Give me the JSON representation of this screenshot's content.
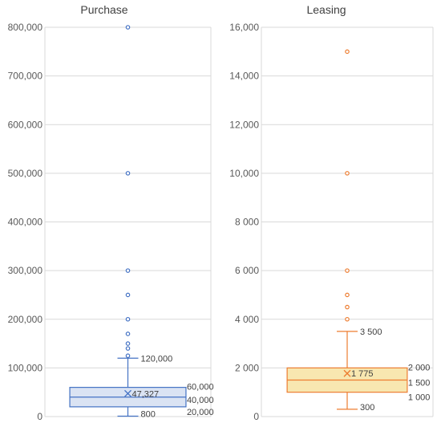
{
  "colors": {
    "purchase_stroke": "#4472C4",
    "purchase_fill": "#DAE3F3",
    "leasing_stroke": "#ED7D31",
    "leasing_fill": "#F8E7B0",
    "grid": "#D9D9D9",
    "axis_text": "#595959"
  },
  "chart_data": [
    {
      "type": "box",
      "title": "Purchase",
      "ylim": [
        0,
        800000
      ],
      "y_ticks": [
        0,
        100000,
        200000,
        300000,
        400000,
        500000,
        600000,
        700000,
        800000
      ],
      "y_tick_labels": [
        "0",
        "100,000",
        "200,000",
        "300,000",
        "400,000",
        "500,000",
        "600,000",
        "700,000",
        "800,000"
      ],
      "grid": true,
      "box": {
        "min": 800,
        "q1": 20000,
        "median": 40000,
        "q3": 60000,
        "whisker_high": 120000,
        "mean": 47327
      },
      "labels": {
        "mean": "47,327",
        "q3": "60,000",
        "median": "40,000",
        "q1": "20,000",
        "min": "800",
        "whisker_high": "120,000"
      },
      "outliers": [
        125000,
        140000,
        150000,
        170000,
        200000,
        250000,
        300000,
        500000,
        800000
      ]
    },
    {
      "type": "box",
      "title": "Leasing",
      "ylim": [
        0,
        16000
      ],
      "y_ticks": [
        0,
        2000,
        4000,
        6000,
        8000,
        10000,
        12000,
        14000,
        16000
      ],
      "y_tick_labels": [
        "0",
        "2 000",
        "4 000",
        "6 000",
        "8 000",
        "10,000",
        "12,000",
        "14,000",
        "16,000"
      ],
      "grid": true,
      "box": {
        "min": 300,
        "q1": 1000,
        "median": 1500,
        "q3": 2000,
        "whisker_high": 3500,
        "mean": 1775
      },
      "labels": {
        "mean": "1 775",
        "q3": "2 000",
        "median": "1 500",
        "q1": "1 000",
        "min": "300",
        "whisker_high": "3 500"
      },
      "outliers": [
        4000,
        4500,
        5000,
        6000,
        10000,
        15000
      ]
    }
  ]
}
